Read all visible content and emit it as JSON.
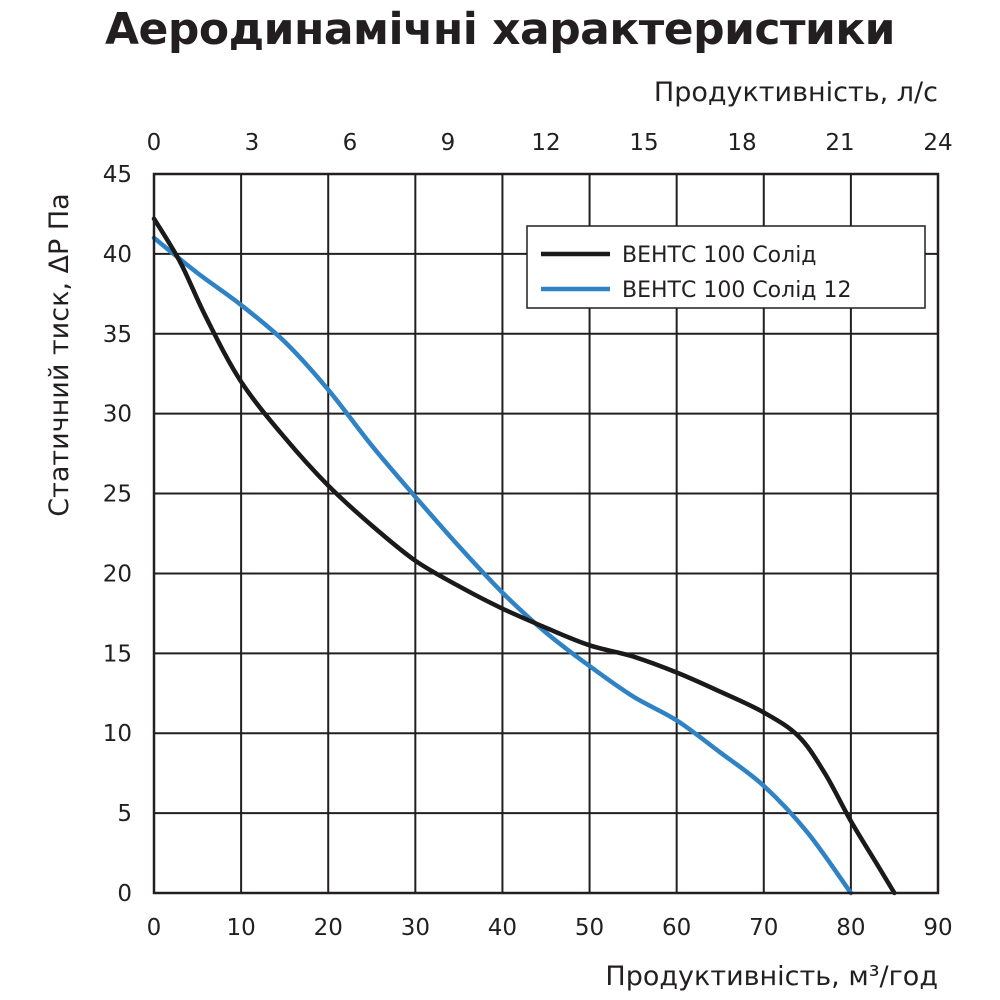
{
  "chart_data": {
    "type": "line",
    "title": "Аеродинамічні характеристики",
    "xlabel": "Продуктивність, м³/год",
    "x2label": "Продуктивність, л/с",
    "ylabel": "Статичний тиск, ΔP Па",
    "xlim": [
      0,
      90
    ],
    "x2lim": [
      0,
      24
    ],
    "ylim": [
      0,
      45
    ],
    "xticks": [
      0,
      10,
      20,
      30,
      40,
      50,
      60,
      70,
      80,
      90
    ],
    "x2ticks": [
      0,
      3,
      6,
      9,
      12,
      15,
      18,
      21,
      24
    ],
    "yticks": [
      0,
      5,
      10,
      15,
      20,
      25,
      30,
      35,
      40,
      45
    ],
    "grid": true,
    "legend_position": "top-right",
    "series": [
      {
        "name": "ВЕНТС 100 Солід",
        "color": "#1a1a1a",
        "x": [
          0,
          3,
          6,
          10,
          15,
          20,
          25,
          30,
          35,
          40,
          45,
          50,
          55,
          60,
          65,
          70,
          74,
          77,
          80,
          83,
          85
        ],
        "y": [
          42.2,
          39.5,
          36,
          32,
          28.5,
          25.5,
          23,
          20.8,
          19.2,
          17.8,
          16.6,
          15.5,
          14.8,
          13.8,
          12.6,
          11.3,
          9.8,
          7.5,
          4.5,
          1.8,
          0
        ]
      },
      {
        "name": "ВЕНТС 100 Солід 12",
        "color": "#2f82c3",
        "x": [
          0,
          5,
          10,
          15,
          20,
          25,
          30,
          35,
          40,
          45,
          50,
          55,
          60,
          65,
          70,
          75,
          80
        ],
        "y": [
          41,
          38.8,
          36.8,
          34.5,
          31.5,
          28,
          24.8,
          21.7,
          18.8,
          16.3,
          14.2,
          12.3,
          10.8,
          8.8,
          6.7,
          3.8,
          0
        ]
      }
    ]
  }
}
